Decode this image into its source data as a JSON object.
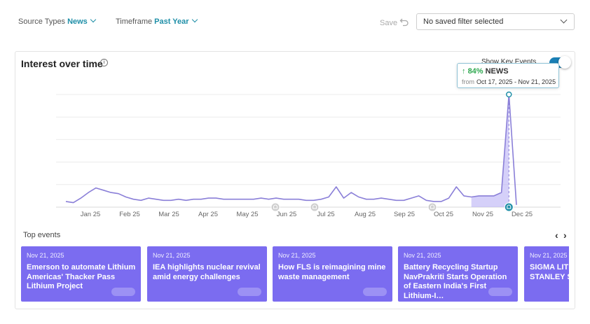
{
  "filters": {
    "source_types_label": "Source Types",
    "source_types_value": "News",
    "timeframe_label": "Timeframe",
    "timeframe_value": "Past Year",
    "save_label": "Save",
    "saved_filter_value": "No saved filter selected"
  },
  "card": {
    "title": "Interest over time",
    "key_events_label": "Show Key Events"
  },
  "tooltip": {
    "percent": "84%",
    "source": "NEWS",
    "from_label": "from",
    "date_range": "Oct 17, 2025 - Nov 21, 2025"
  },
  "chart_data": {
    "type": "line",
    "x_labels": [
      "Jan 25",
      "Feb 25",
      "Mar 25",
      "Apr 25",
      "May 25",
      "Jun 25",
      "Jul 25",
      "Aug 25",
      "Sep 25",
      "Oct 25",
      "Nov 25",
      "Dec 25"
    ],
    "ylim": [
      0,
      100
    ],
    "series": [
      {
        "values": [
          5,
          4,
          8,
          13,
          17,
          15,
          13,
          12,
          9,
          7,
          6,
          8,
          7,
          6,
          6,
          7,
          6,
          7,
          7,
          8,
          8,
          7,
          7,
          7,
          7,
          7,
          8,
          7,
          8,
          7,
          7,
          7,
          6,
          6,
          7,
          9,
          18,
          8,
          13,
          9,
          7,
          7,
          8,
          7,
          6,
          6,
          8,
          10,
          6,
          5,
          5,
          8,
          18,
          10,
          9,
          10,
          10,
          10,
          13,
          100,
          2
        ]
      }
    ],
    "highlight_start_index": 54,
    "highlight_end_index": 59,
    "event_markers": [
      "Jun 25",
      "Jul 25",
      "Oct 25",
      "Dec 25"
    ],
    "grid": true,
    "colors": {
      "line": "#8a7fd8",
      "fill": "#b9b1f5",
      "marker": "#1f8fa8"
    }
  },
  "top_events": {
    "label": "Top events",
    "items": [
      {
        "date": "Nov 21, 2025",
        "headline": "Emerson to automate Lithium Americas' Thacker Pass Lithium Project"
      },
      {
        "date": "Nov 21, 2025",
        "headline": "IEA highlights nuclear revival amid energy challenges"
      },
      {
        "date": "Nov 21, 2025",
        "headline": "How FLS is reimagining mine waste management"
      },
      {
        "date": "Nov 21, 2025",
        "headline": "Battery Recycling Startup NavPrakriti Starts Operation of Eastern India's First Lithium-I…"
      },
      {
        "date": "Nov 21, 2025",
        "headline": "SIGMA LITHIUM MORGAN STANLEY SECURITY I"
      }
    ]
  }
}
